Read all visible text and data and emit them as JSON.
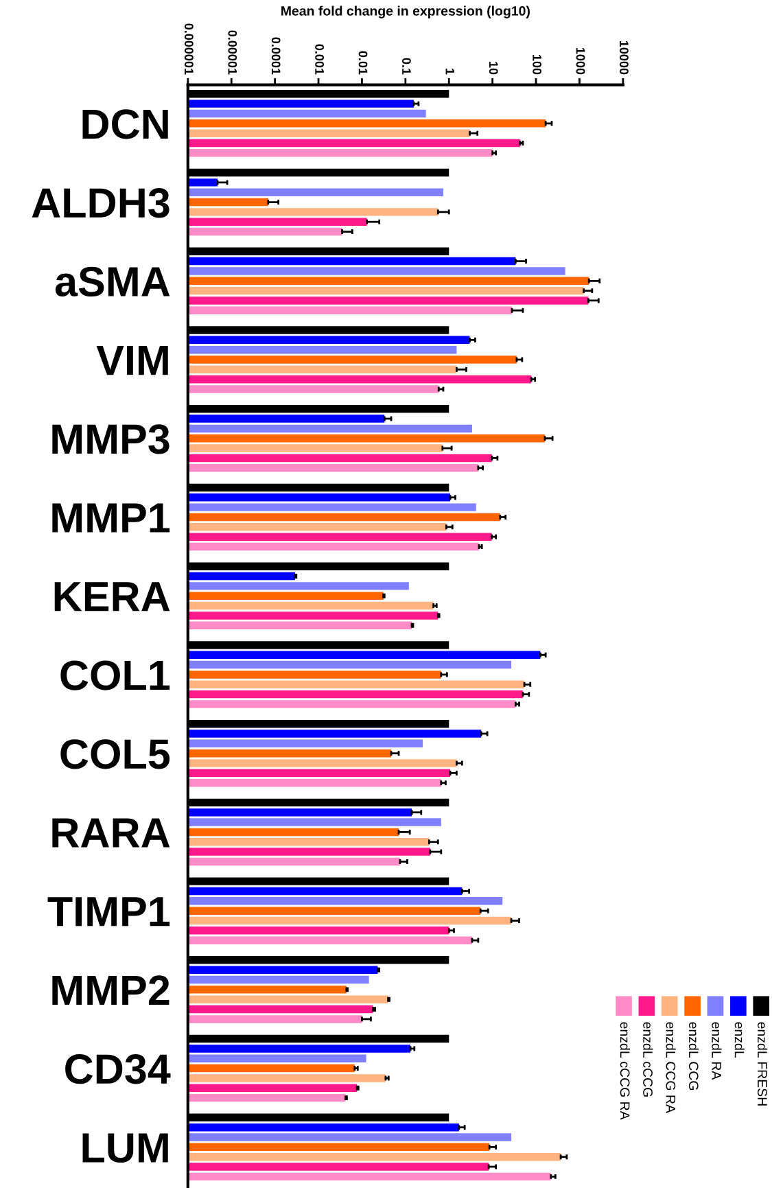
{
  "chart_data": {
    "type": "bar",
    "orientation": "horizontal",
    "log": "x",
    "xlabel": "Mean fold change in expression (log10)",
    "categories": [
      "DCN",
      "ALDH3",
      "aSMA",
      "VIM",
      "MMP3",
      "MMP1",
      "KERA",
      "COL1",
      "COL5",
      "RARA",
      "TIMP1",
      "MMP2",
      "CD34",
      "LUM"
    ],
    "xlim": [
      1e-06,
      10000
    ],
    "xticks": [
      {
        "value": 1e-06,
        "label": "0.000001"
      },
      {
        "value": 1e-05,
        "label": "0.00001"
      },
      {
        "value": 0.0001,
        "label": "0.0001"
      },
      {
        "value": 0.001,
        "label": "0.001"
      },
      {
        "value": 0.01,
        "label": "0.01"
      },
      {
        "value": 0.1,
        "label": "0.1"
      },
      1,
      10,
      100,
      1000,
      10000
    ],
    "legend": "bottom right",
    "grid": false,
    "series": [
      {
        "name": "enzdL FRESH",
        "color": "#000000",
        "values": [
          1,
          1,
          1,
          1,
          1,
          1,
          1,
          1,
          1,
          1,
          1,
          1,
          1,
          1
        ]
      },
      {
        "name": "enzdL",
        "color": "#0000ff",
        "values": [
          0.155,
          4.8e-06,
          34,
          3.0,
          0.033,
          1.07,
          0.00029,
          126,
          5.5,
          0.14,
          2.0,
          0.023,
          0.13,
          1.7
        ],
        "errors": [
          [
            0.155,
            0.2
          ],
          [
            4.8e-06,
            8e-06
          ],
          [
            34,
            59
          ],
          [
            3.0,
            4.0
          ],
          [
            0.033,
            0.047
          ],
          [
            1.07,
            1.4
          ],
          [
            0.00029,
            0.00031
          ],
          [
            126,
            167
          ],
          [
            5.5,
            7.6
          ],
          [
            0.14,
            0.23
          ],
          [
            2.0,
            2.9
          ],
          [
            0.023,
            0.025
          ],
          [
            0.13,
            0.16
          ],
          [
            1.7,
            2.3
          ]
        ]
      },
      {
        "name": "enzdL RA",
        "color": "#8080ff",
        "values": [
          0.295,
          0.74,
          470,
          1.5,
          3.4,
          4.2,
          0.12,
          27,
          0.25,
          0.66,
          17,
          0.0145,
          0.0125,
          27
        ]
      },
      {
        "name": "enzdL CCG",
        "color": "#ff6600",
        "values": [
          167,
          7e-05,
          1650,
          36,
          160,
          15,
          0.031,
          0.66,
          0.047,
          0.07,
          5.3,
          0.0044,
          0.0068,
          8.5
        ],
        "errors": [
          [
            167,
            230
          ],
          [
            7e-05,
            0.00012
          ],
          [
            1650,
            2900
          ],
          [
            36,
            48
          ],
          [
            160,
            240
          ],
          [
            15,
            20
          ],
          [
            0.031,
            0.033
          ],
          [
            0.66,
            0.9
          ],
          [
            0.047,
            0.07
          ],
          [
            0.07,
            0.126
          ],
          [
            5.3,
            7.9
          ],
          [
            0.0044,
            0.0047
          ],
          [
            0.0068,
            0.008
          ],
          [
            8.5,
            12
          ]
        ]
      },
      {
        "name": "enzdL CCG RA",
        "color": "#ffb380",
        "values": [
          3.0,
          0.56,
          1250,
          1.5,
          0.71,
          0.87,
          0.44,
          54,
          1.5,
          0.35,
          27,
          0.04,
          0.035,
          370
        ],
        "errors": [
          [
            3.0,
            4.5
          ],
          [
            0.56,
            1.0
          ],
          [
            1250,
            1950
          ],
          [
            1.5,
            2.5
          ],
          [
            0.71,
            1.15
          ],
          [
            0.87,
            1.2
          ],
          [
            0.44,
            0.52
          ],
          [
            54,
            74
          ],
          [
            1.5,
            2.0
          ],
          [
            0.35,
            0.56
          ],
          [
            27,
            41
          ],
          [
            0.04,
            0.043
          ],
          [
            0.035,
            0.041
          ],
          [
            370,
            510
          ]
        ]
      },
      {
        "name": "enzdL cCCG",
        "color": "#ff1a8c",
        "values": [
          43,
          0.013,
          1600,
          78,
          9.7,
          9.6,
          0.56,
          50,
          1.07,
          0.37,
          1.0,
          0.018,
          0.0077,
          8.2
        ],
        "errors": [
          [
            43,
            50
          ],
          [
            0.013,
            0.025
          ],
          [
            1600,
            2750
          ],
          [
            78,
            95
          ],
          [
            9.7,
            13
          ],
          [
            9.6,
            12
          ],
          [
            0.56,
            0.6
          ],
          [
            50,
            69
          ],
          [
            1.07,
            1.5
          ],
          [
            0.37,
            0.66
          ],
          [
            1.0,
            1.3
          ],
          [
            0.018,
            0.02
          ],
          [
            0.0077,
            0.0083
          ],
          [
            8.2,
            12
          ]
        ]
      },
      {
        "name": "enzdL cCCG RA",
        "color": "#ff8cc6",
        "values": [
          10,
          0.0035,
          28,
          0.58,
          4.7,
          4.9,
          0.14,
          34,
          0.66,
          0.075,
          3.4,
          0.01,
          0.0042,
          220
        ],
        "errors": [
          [
            10,
            12
          ],
          [
            0.0035,
            0.006
          ],
          [
            28,
            50
          ],
          [
            0.58,
            0.74
          ],
          [
            4.7,
            6
          ],
          [
            4.9,
            5.7
          ],
          [
            0.14,
            0.15
          ],
          [
            34,
            41
          ],
          [
            0.66,
            0.84
          ],
          [
            0.075,
            0.11
          ],
          [
            3.4,
            4.7
          ],
          [
            0.01,
            0.016
          ],
          [
            0.0042,
            0.0045
          ],
          [
            220,
            280
          ]
        ]
      }
    ]
  }
}
